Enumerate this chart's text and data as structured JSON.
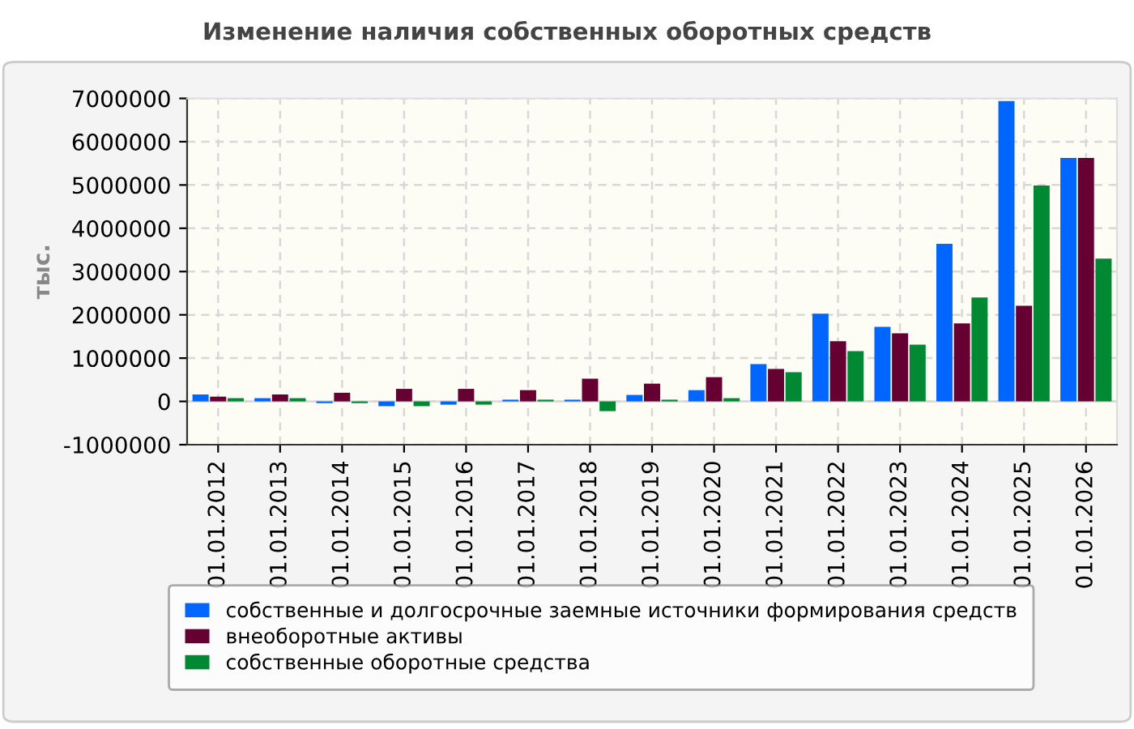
{
  "chart_data": {
    "type": "bar",
    "title": "Изменение наличия собственных оборотных средств",
    "ylabel": "тыс.",
    "categories": [
      "01.01.2012",
      "01.01.2013",
      "01.01.2014",
      "01.01.2015",
      "01.01.2016",
      "01.01.2017",
      "01.01.2018",
      "01.01.2019",
      "01.01.2020",
      "01.01.2021",
      "01.01.2022",
      "01.01.2023",
      "01.01.2024",
      "01.01.2025",
      "01.01.2026"
    ],
    "series": [
      {
        "name": "собственные и долгосрочные заемные источники формирования средств",
        "color": "#0066ff",
        "values": [
          160000,
          75000,
          -40000,
          -110000,
          -75000,
          40000,
          40000,
          150000,
          260000,
          860000,
          2025000,
          1725000,
          3640000,
          6940000,
          5625000
        ]
      },
      {
        "name": "внеоборотные активы",
        "color": "#660033",
        "values": [
          110000,
          160000,
          200000,
          290000,
          290000,
          260000,
          525000,
          410000,
          560000,
          750000,
          1390000,
          1575000,
          1800000,
          2210000,
          5625000
        ]
      },
      {
        "name": "собственные оборотные средства",
        "color": "#008833",
        "values": [
          75000,
          75000,
          -40000,
          -110000,
          -75000,
          40000,
          -225000,
          40000,
          75000,
          675000,
          1160000,
          1310000,
          2400000,
          4990000,
          3300000
        ]
      }
    ],
    "ylim": [
      -1000000,
      7000000
    ],
    "yticks": [
      -1000000,
      0,
      1000000,
      2000000,
      3000000,
      4000000,
      5000000,
      6000000,
      7000000
    ],
    "grid": true,
    "legend": "bottom"
  }
}
